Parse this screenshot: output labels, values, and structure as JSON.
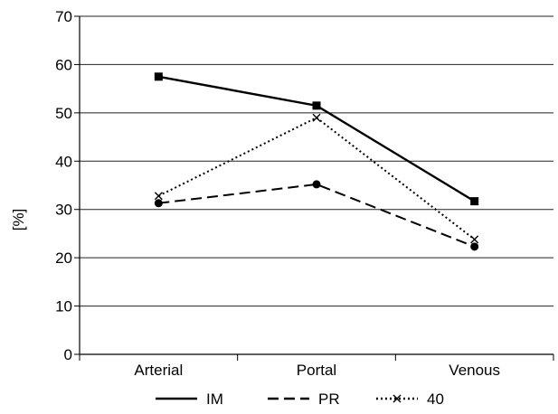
{
  "chart_data": {
    "type": "line",
    "categories": [
      "Arterial",
      "Portal",
      "Venous"
    ],
    "ylabel": "[%]",
    "xlabel": "",
    "title": "",
    "ylim": [
      0,
      70
    ],
    "yticks": [
      0,
      10,
      20,
      30,
      40,
      50,
      60,
      70
    ],
    "grid": "horizontal",
    "legend_position": "bottom",
    "series": [
      {
        "name": "IM",
        "values": [
          57.5,
          51.5,
          31.7
        ],
        "line_style": "solid",
        "marker": "square",
        "color": "#000000"
      },
      {
        "name": "PR",
        "values": [
          31.3,
          35.2,
          22.3
        ],
        "line_style": "dashed",
        "marker": "circle",
        "color": "#000000"
      },
      {
        "name": "40",
        "values": [
          32.8,
          49.0,
          23.8
        ],
        "line_style": "dotted",
        "marker": "x",
        "color": "#000000"
      }
    ]
  }
}
